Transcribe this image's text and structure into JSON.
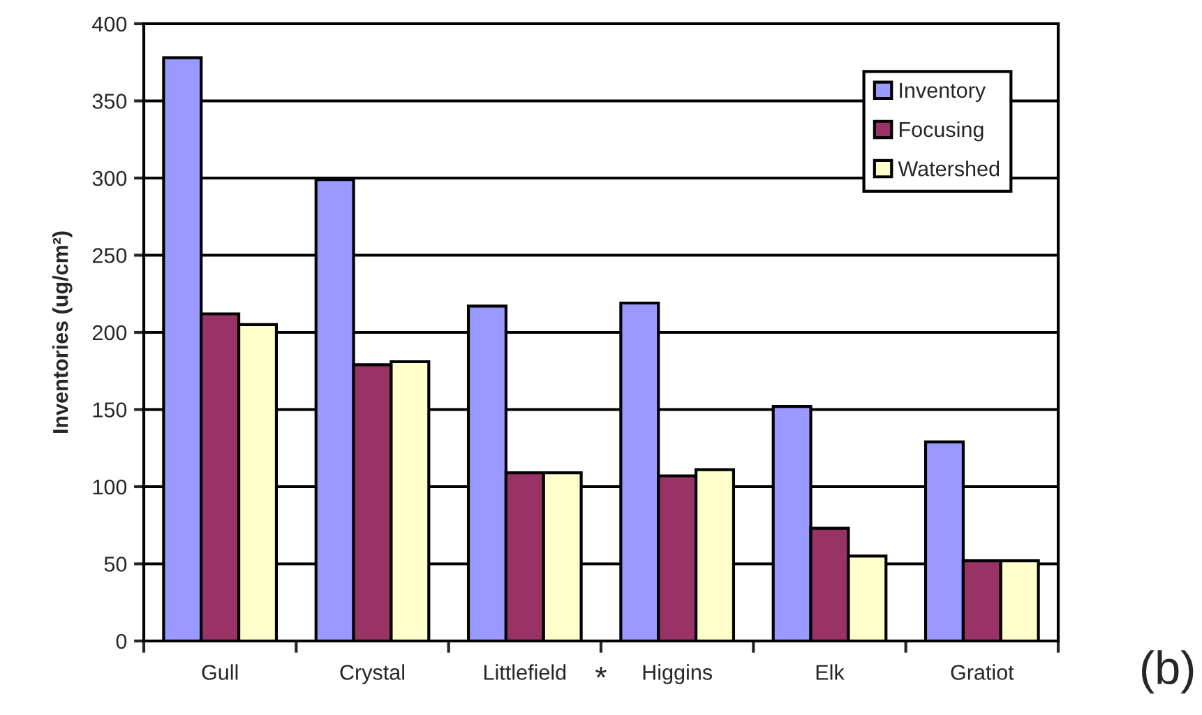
{
  "chart_data": {
    "type": "bar",
    "ylabel": "Inventories (ug/cm²)",
    "categories": [
      "Gull",
      "Crystal",
      "Littlefield",
      "Higgins",
      "Elk",
      "Gratiot"
    ],
    "series": [
      {
        "name": "Inventory",
        "color": "#9999ff",
        "values": [
          378,
          299,
          217,
          219,
          152,
          129
        ]
      },
      {
        "name": "Focusing",
        "color": "#993366",
        "values": [
          212,
          179,
          109,
          107,
          73,
          52
        ]
      },
      {
        "name": "Watershed",
        "color": "#ffffcc",
        "values": [
          205,
          181,
          109,
          111,
          55,
          52
        ]
      }
    ],
    "ylim": [
      0,
      400
    ],
    "yticks": [
      0,
      50,
      100,
      150,
      200,
      250,
      300,
      350,
      400
    ],
    "grid": "y",
    "legend": "top right",
    "annotations": [
      "*",
      "(b)"
    ]
  }
}
